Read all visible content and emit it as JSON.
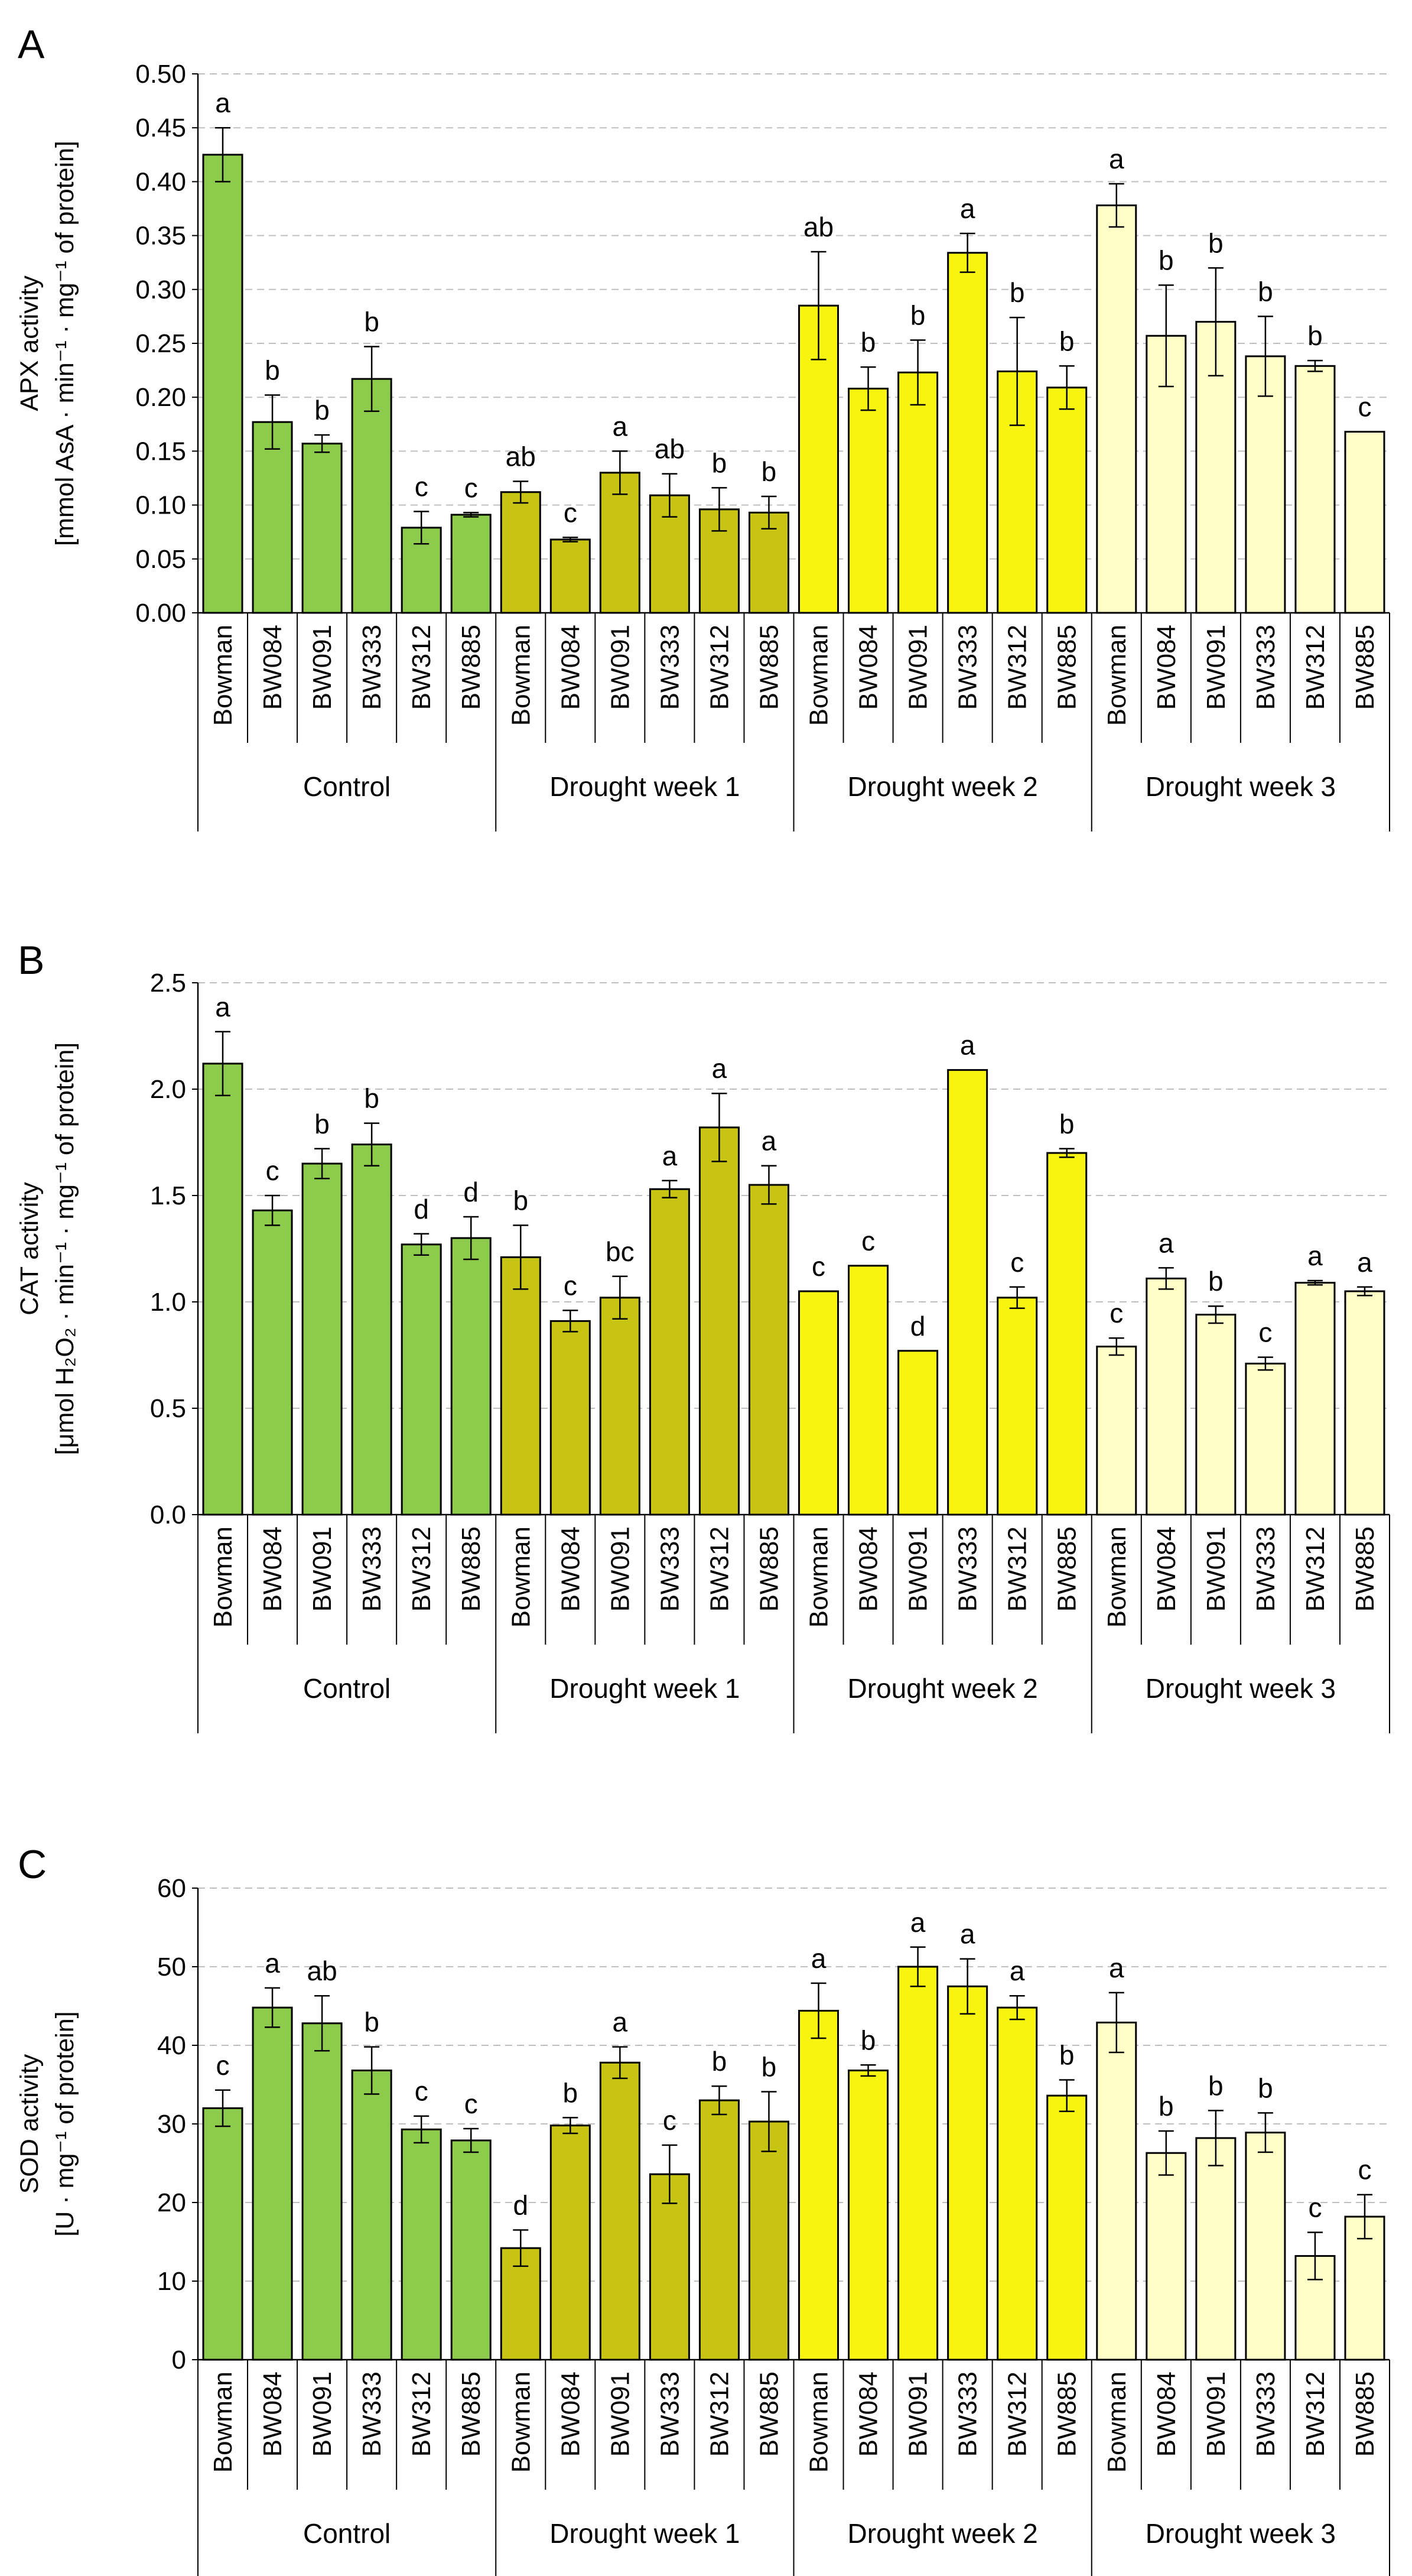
{
  "colors": {
    "group_fills": [
      "#8DCB4C",
      "#C7C414",
      "#F7F410",
      "#FFFEC6"
    ],
    "bar_stroke": "#000000",
    "grid": "#BFBFBF"
  },
  "chart_data": [
    {
      "type": "bar",
      "panel_label": "A",
      "ylabel_lines": [
        "APX activity",
        "[mmol AsA · min⁻¹ · mg⁻¹ of protein]"
      ],
      "ylim": [
        0,
        0.5
      ],
      "yticks": [
        "0.00",
        "0.05",
        "0.10",
        "0.15",
        "0.20",
        "0.25",
        "0.30",
        "0.35",
        "0.40",
        "0.45",
        "0.50"
      ],
      "grid": true,
      "groups": [
        "Control",
        "Drought week 1",
        "Drought week 2",
        "Drought week 3"
      ],
      "categories": [
        "Bowman",
        "BW084",
        "BW091",
        "BW333",
        "BW312",
        "BW885"
      ],
      "series": [
        {
          "name": "Control",
          "values": [
            0.425,
            0.177,
            0.157,
            0.217,
            0.079,
            0.091
          ],
          "errors": [
            0.025,
            0.025,
            0.008,
            0.03,
            0.015,
            0.002
          ],
          "letters": [
            "a",
            "b",
            "b",
            "b",
            "c",
            "c"
          ]
        },
        {
          "name": "Drought week 1",
          "values": [
            0.112,
            0.068,
            0.13,
            0.109,
            0.096,
            0.093
          ],
          "errors": [
            0.01,
            0.002,
            0.02,
            0.02,
            0.02,
            0.015
          ],
          "letters": [
            "ab",
            "c",
            "a",
            "ab",
            "b",
            "b"
          ]
        },
        {
          "name": "Drought week 2",
          "values": [
            0.285,
            0.208,
            0.223,
            0.334,
            0.224,
            0.209
          ],
          "errors": [
            0.05,
            0.02,
            0.03,
            0.018,
            0.05,
            0.02
          ],
          "letters": [
            "ab",
            "b",
            "b",
            "a",
            "b",
            "b"
          ]
        },
        {
          "name": "Drought week 3",
          "values": [
            0.378,
            0.257,
            0.27,
            0.238,
            0.229,
            0.168
          ],
          "errors": [
            0.02,
            0.047,
            0.05,
            0.037,
            0.005,
            0.0
          ],
          "letters": [
            "a",
            "b",
            "b",
            "b",
            "b",
            "c"
          ]
        }
      ]
    },
    {
      "type": "bar",
      "panel_label": "B",
      "ylabel_lines": [
        "CAT activity",
        "[μmol H₂O₂ · min⁻¹ · mg⁻¹ of protein]"
      ],
      "ylim": [
        0,
        2.5
      ],
      "yticks": [
        "0.0",
        "0.5",
        "1.0",
        "1.5",
        "2.0",
        "2.5"
      ],
      "grid": true,
      "groups": [
        "Control",
        "Drought week 1",
        "Drought week 2",
        "Drought week 3"
      ],
      "categories": [
        "Bowman",
        "BW084",
        "BW091",
        "BW333",
        "BW312",
        "BW885"
      ],
      "series": [
        {
          "name": "Control",
          "values": [
            2.12,
            1.43,
            1.65,
            1.74,
            1.27,
            1.3
          ],
          "errors": [
            0.15,
            0.07,
            0.07,
            0.1,
            0.05,
            0.1
          ],
          "letters": [
            "a",
            "c",
            "b",
            "b",
            "d",
            "d"
          ]
        },
        {
          "name": "Drought week 1",
          "values": [
            1.21,
            0.91,
            1.02,
            1.53,
            1.82,
            1.55
          ],
          "errors": [
            0.15,
            0.05,
            0.1,
            0.04,
            0.16,
            0.09
          ],
          "letters": [
            "b",
            "c",
            "bc",
            "a",
            "a",
            "a"
          ]
        },
        {
          "name": "Drought week 2",
          "values": [
            1.05,
            1.17,
            0.77,
            2.09,
            1.02,
            1.7
          ],
          "errors": [
            0.0,
            0.0,
            0.0,
            0.0,
            0.05,
            0.02
          ],
          "letters": [
            "c",
            "c",
            "d",
            "a",
            "c",
            "b"
          ]
        },
        {
          "name": "Drought week 3",
          "values": [
            0.79,
            1.11,
            0.94,
            0.71,
            1.09,
            1.05
          ],
          "errors": [
            0.04,
            0.05,
            0.04,
            0.03,
            0.01,
            0.02
          ],
          "letters": [
            "c",
            "a",
            "b",
            "c",
            "a",
            "a"
          ]
        }
      ]
    },
    {
      "type": "bar",
      "panel_label": "C",
      "ylabel_lines": [
        "SOD activity",
        "[U · mg⁻¹ of protein]"
      ],
      "ylim": [
        0,
        60
      ],
      "yticks": [
        "0",
        "10",
        "20",
        "30",
        "40",
        "50",
        "60"
      ],
      "grid": true,
      "groups": [
        "Control",
        "Drought week 1",
        "Drought week 2",
        "Drought week 3"
      ],
      "categories": [
        "Bowman",
        "BW084",
        "BW091",
        "BW333",
        "BW312",
        "BW885"
      ],
      "series": [
        {
          "name": "Control",
          "values": [
            32,
            44.8,
            42.8,
            36.8,
            29.3,
            27.9
          ],
          "errors": [
            2.3,
            2.5,
            3.5,
            3.0,
            1.7,
            1.5
          ],
          "letters": [
            "c",
            "a",
            "ab",
            "b",
            "c",
            "c"
          ]
        },
        {
          "name": "Drought week 1",
          "values": [
            14.2,
            29.8,
            37.8,
            23.6,
            33.0,
            30.3
          ],
          "errors": [
            2.3,
            1.0,
            2.0,
            3.7,
            1.8,
            3.8
          ],
          "letters": [
            "d",
            "b",
            "a",
            "c",
            "b",
            "b"
          ]
        },
        {
          "name": "Drought week 2",
          "values": [
            44.4,
            36.8,
            50.0,
            47.5,
            44.8,
            33.6
          ],
          "errors": [
            3.5,
            0.7,
            2.5,
            3.5,
            1.5,
            2.0
          ],
          "letters": [
            "a",
            "b",
            "a",
            "a",
            "a",
            "b"
          ]
        },
        {
          "name": "Drought week 3",
          "values": [
            42.9,
            26.3,
            28.2,
            28.9,
            13.2,
            18.2
          ],
          "errors": [
            3.8,
            2.8,
            3.5,
            2.5,
            3.0,
            2.8
          ],
          "letters": [
            "a",
            "b",
            "b",
            "b",
            "c",
            "c"
          ]
        }
      ]
    }
  ]
}
